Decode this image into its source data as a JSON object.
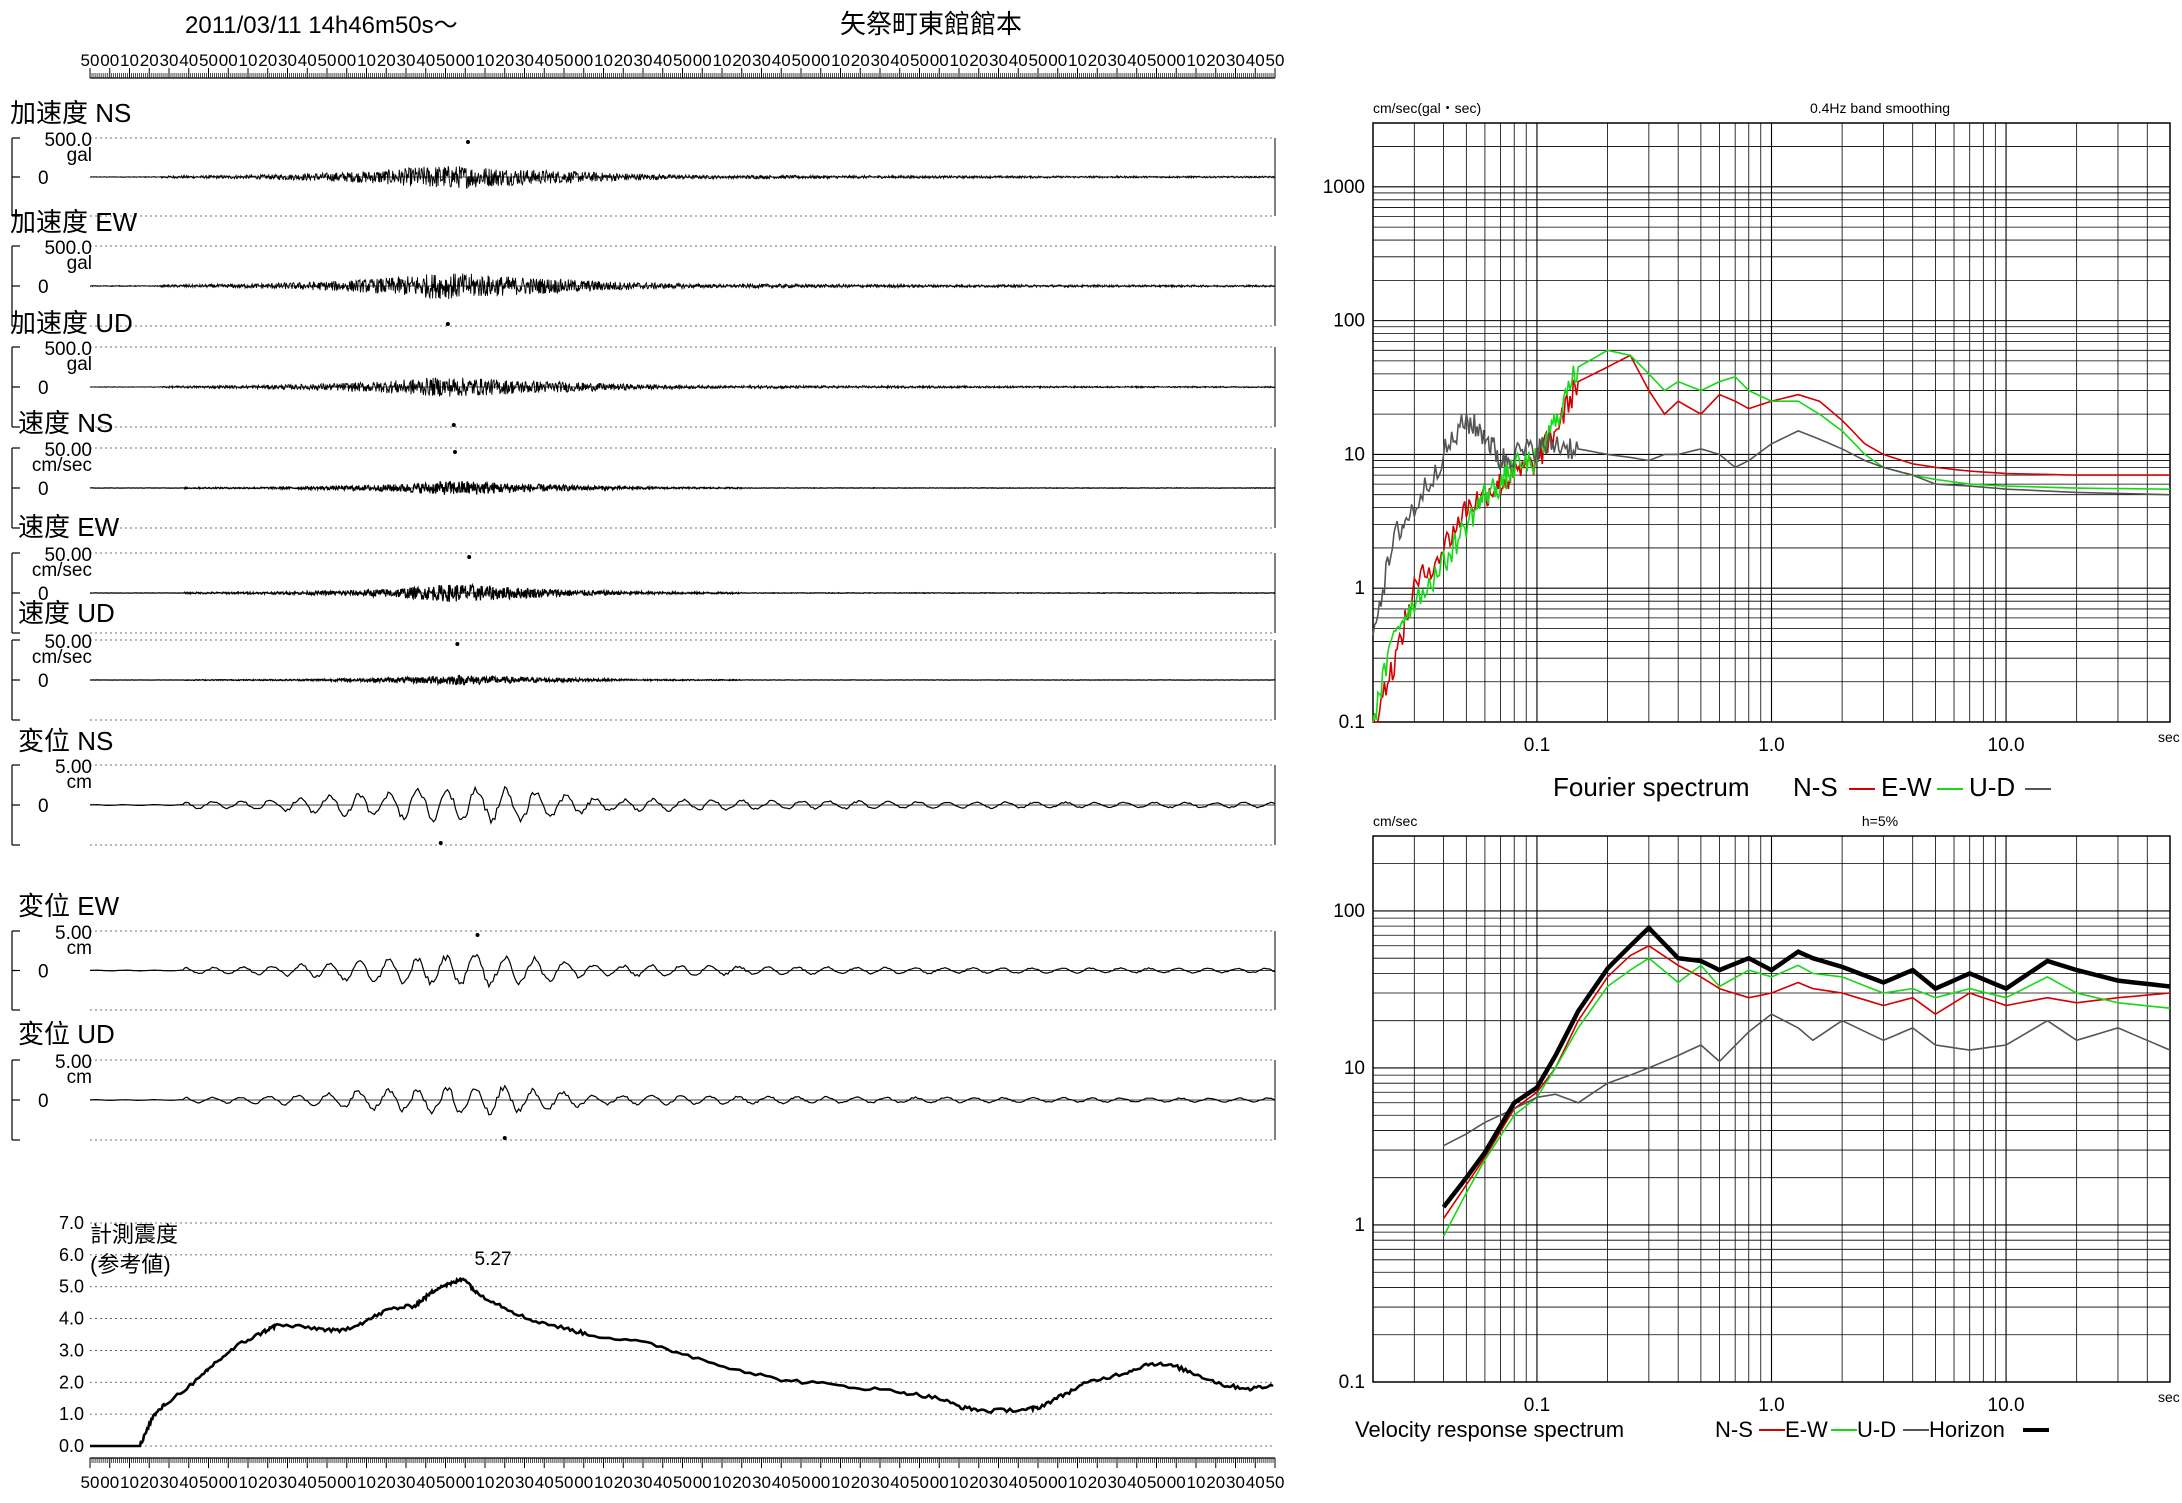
{
  "header": {
    "datetime": "2011/03/11  14h46m50s〜",
    "station": "矢祭町東館館本"
  },
  "time_ticks": [
    "50",
    "00",
    "10",
    "20",
    "30",
    "40",
    "50",
    "00",
    "10",
    "20",
    "30",
    "40",
    "50",
    "00",
    "10",
    "20",
    "30",
    "40",
    "50",
    "00",
    "10",
    "20",
    "30",
    "40",
    "50",
    "00",
    "10",
    "20",
    "30",
    "40",
    "50",
    "00",
    "10",
    "20",
    "30",
    "40",
    "50",
    "00",
    "10",
    "20",
    "30",
    "40",
    "50",
    "00",
    "10",
    "20",
    "30",
    "40",
    "50",
    "00",
    "10",
    "20",
    "30",
    "40",
    "50",
    "00",
    "10",
    "20",
    "30",
    "40",
    "50"
  ],
  "waveform_panels": [
    {
      "title": "加速度 NS",
      "max": "500.0",
      "unit": "gal",
      "zero": "0",
      "amp": 0.55,
      "type": "acc",
      "peak_dir": "up",
      "peak_x": 0.319
    },
    {
      "title": "加速度 EW",
      "max": "500.0",
      "unit": "gal",
      "zero": "0",
      "amp": 0.6,
      "type": "acc",
      "peak_dir": "down",
      "peak_x": 0.302
    },
    {
      "title": "加速度 UD",
      "max": "500.0",
      "unit": "gal",
      "zero": "0",
      "amp": 0.45,
      "type": "acc",
      "peak_dir": "down",
      "peak_x": 0.307
    },
    {
      "title": "速度 NS",
      "max": "50.00",
      "unit": "cm/sec",
      "zero": "0",
      "amp": 0.45,
      "type": "vel",
      "peak_dir": "up",
      "peak_x": 0.308
    },
    {
      "title": "速度 EW",
      "max": "50.00",
      "unit": "cm/sec",
      "zero": "0",
      "amp": 0.55,
      "type": "vel",
      "peak_dir": "up",
      "peak_x": 0.32
    },
    {
      "title": "速度 UD",
      "max": "50.00",
      "unit": "cm/sec",
      "zero": "0",
      "amp": 0.3,
      "type": "vel",
      "peak_dir": "up",
      "peak_x": 0.31
    },
    {
      "title": "変位 NS",
      "max": "5.00",
      "unit": "cm",
      "zero": "0",
      "amp": 1.0,
      "type": "disp",
      "peak_dir": "down",
      "peak_x": 0.296
    },
    {
      "title": "変位 EW",
      "max": "5.00",
      "unit": "cm",
      "zero": "0",
      "amp": 0.9,
      "type": "disp",
      "peak_dir": "up",
      "peak_x": 0.327
    },
    {
      "title": "変位 UD",
      "max": "5.00",
      "unit": "cm",
      "zero": "0",
      "amp": 0.8,
      "type": "disp",
      "peak_dir": "down",
      "peak_x": 0.35
    }
  ],
  "intensity": {
    "title_line1": "計測震度",
    "title_line2": "(参考値)",
    "peak_label": "5.27",
    "y_ticks": [
      "7.0",
      "6.0",
      "5.0",
      "4.0",
      "3.0",
      "2.0",
      "1.0",
      "0.0"
    ]
  },
  "fourier": {
    "unit": "cm/sec(gal・sec)",
    "note": "0.4Hz band smoothing",
    "y_ticks": [
      "1000",
      "100",
      "10",
      "1",
      "0.1"
    ],
    "x_ticks": [
      "0.1",
      "1.0",
      "10.0"
    ],
    "x_unit": "sec",
    "legend_title": "Fourier spectrum",
    "legend": [
      {
        "label": "N-S",
        "color": "#d40000"
      },
      {
        "label": "E-W",
        "color": "#16d916"
      },
      {
        "label": "U-D",
        "color": "#555555"
      }
    ]
  },
  "response": {
    "unit": "cm/sec",
    "note": "h=5%",
    "y_ticks": [
      "100",
      "10",
      "1",
      "0.1"
    ],
    "x_ticks": [
      "0.1",
      "1.0",
      "10.0"
    ],
    "x_unit": "sec",
    "legend_title": "Velocity response spectrum",
    "legend": [
      {
        "label": "N-S",
        "color": "#d40000"
      },
      {
        "label": "E-W",
        "color": "#16d916"
      },
      {
        "label": "U-D",
        "color": "#555555"
      },
      {
        "label": "Horizon",
        "color": "#000000"
      }
    ]
  },
  "chart_data": [
    {
      "type": "line",
      "title": "計測震度 (参考値)",
      "xlabel": "",
      "ylabel": "",
      "ylim": [
        0,
        7
      ],
      "x_ticks": [
        "50",
        "00",
        "10",
        "20",
        "30",
        "40",
        "50",
        "00",
        "10",
        "20",
        "30",
        "40",
        "50",
        "00",
        "10",
        "20",
        "30",
        "40",
        "50",
        "00",
        "10",
        "20",
        "30",
        "40",
        "50",
        "00",
        "10",
        "20",
        "30",
        "40",
        "50",
        "00",
        "10",
        "20",
        "30",
        "40",
        "50",
        "00",
        "10",
        "20",
        "30",
        "40",
        "50",
        "00",
        "10",
        "20",
        "30",
        "40",
        "50",
        "00",
        "10",
        "20",
        "30",
        "40",
        "50",
        "00",
        "10",
        "20",
        "30",
        "40",
        "50"
      ],
      "x": [
        0,
        30,
        40,
        50,
        60,
        90,
        100,
        120,
        140,
        150,
        180,
        200,
        220,
        240,
        260,
        270,
        280,
        290,
        300,
        310,
        330,
        350,
        380,
        400,
        450,
        500,
        550,
        600,
        650,
        680,
        700,
        720,
        750,
        760,
        780,
        800,
        830,
        850,
        870,
        890,
        910,
        930,
        950
      ],
      "series": [
        {
          "name": "",
          "values": [
            0,
            0,
            0,
            0.9,
            1.3,
            2.2,
            2.6,
            3.2,
            3.6,
            3.8,
            3.7,
            3.6,
            3.9,
            4.3,
            4.4,
            4.7,
            5.0,
            5.1,
            5.27,
            4.8,
            4.4,
            4.0,
            3.7,
            3.5,
            3.2,
            2.6,
            2.1,
            1.9,
            1.7,
            1.5,
            1.2,
            1.1,
            1.15,
            1.2,
            1.6,
            2.0,
            2.3,
            2.6,
            2.5,
            2.2,
            1.9,
            1.8,
            1.9
          ]
        }
      ],
      "peak": 5.27
    },
    {
      "type": "line",
      "title": "0.4Hz band smoothing",
      "xlabel": "sec",
      "ylabel": "cm/sec(gal・sec)",
      "xscale": "log",
      "yscale": "log",
      "xlim": [
        0.02,
        50
      ],
      "ylim": [
        0.1,
        3000
      ],
      "series": [
        {
          "name": "N-S",
          "x": [
            0.02,
            0.025,
            0.03,
            0.04,
            0.05,
            0.06,
            0.07,
            0.08,
            0.1,
            0.12,
            0.15,
            0.2,
            0.25,
            0.3,
            0.35,
            0.4,
            0.5,
            0.6,
            0.7,
            0.8,
            1.0,
            1.3,
            1.6,
            2.0,
            2.5,
            3,
            4,
            5,
            7,
            10,
            20,
            50
          ],
          "values": [
            0.1,
            0.3,
            1.0,
            2.0,
            4.0,
            5.0,
            6.0,
            7.0,
            9.0,
            15.0,
            35.0,
            45.0,
            55.0,
            30.0,
            20.0,
            25.0,
            20.0,
            28.0,
            25.0,
            22.0,
            25.0,
            28.0,
            25.0,
            18.0,
            12.0,
            10.0,
            8.5,
            8.0,
            7.5,
            7.2,
            7.0,
            7.0
          ]
        },
        {
          "name": "E-W",
          "x": [
            0.02,
            0.025,
            0.03,
            0.04,
            0.05,
            0.06,
            0.07,
            0.08,
            0.1,
            0.12,
            0.15,
            0.2,
            0.25,
            0.3,
            0.35,
            0.4,
            0.5,
            0.6,
            0.7,
            0.8,
            1.0,
            1.3,
            1.6,
            2.0,
            2.5,
            3,
            4,
            5,
            7,
            10,
            20,
            50
          ],
          "values": [
            0.1,
            0.5,
            0.8,
            1.5,
            3.0,
            5.0,
            6.0,
            8.0,
            9.0,
            18.0,
            45.0,
            60.0,
            55.0,
            40.0,
            30.0,
            35.0,
            30.0,
            35.0,
            38.0,
            30.0,
            25.0,
            25.0,
            20.0,
            15.0,
            10.0,
            8.0,
            7.0,
            6.5,
            6.0,
            5.8,
            5.6,
            5.5
          ]
        },
        {
          "name": "U-D",
          "x": [
            0.02,
            0.025,
            0.03,
            0.04,
            0.05,
            0.06,
            0.07,
            0.08,
            0.1,
            0.12,
            0.15,
            0.2,
            0.25,
            0.3,
            0.35,
            0.4,
            0.5,
            0.6,
            0.7,
            0.8,
            1.0,
            1.3,
            1.6,
            2.0,
            2.5,
            3,
            4,
            5,
            7,
            10,
            20,
            50
          ],
          "values": [
            0.5,
            2.5,
            4.0,
            10.0,
            18.0,
            14.0,
            9.0,
            10.0,
            11.0,
            12.0,
            11.0,
            10.0,
            9.5,
            9.0,
            10.0,
            10.0,
            11.0,
            10.0,
            8.0,
            9.0,
            12.0,
            15.0,
            13.0,
            11.0,
            9.0,
            8.0,
            7.0,
            6.0,
            5.8,
            5.5,
            5.2,
            5.0
          ]
        }
      ]
    },
    {
      "type": "line",
      "title": "h=5%",
      "xlabel": "sec",
      "ylabel": "cm/sec",
      "xscale": "log",
      "yscale": "log",
      "xlim": [
        0.02,
        50
      ],
      "ylim": [
        0.1,
        300
      ],
      "series": [
        {
          "name": "N-S",
          "x": [
            0.04,
            0.05,
            0.06,
            0.08,
            0.1,
            0.12,
            0.15,
            0.2,
            0.25,
            0.3,
            0.4,
            0.5,
            0.6,
            0.8,
            1.0,
            1.3,
            1.5,
            2,
            3,
            4,
            5,
            7,
            10,
            15,
            20,
            30,
            50
          ],
          "values": [
            1.1,
            1.8,
            2.7,
            5.5,
            7.0,
            10.0,
            20.0,
            38.0,
            52.0,
            60.0,
            45.0,
            38.0,
            32.0,
            28.0,
            30.0,
            35.0,
            32.0,
            30.0,
            25.0,
            28.0,
            22.0,
            30.0,
            25.0,
            28.0,
            26.0,
            28.0,
            30.0
          ]
        },
        {
          "name": "E-W",
          "x": [
            0.04,
            0.05,
            0.06,
            0.08,
            0.1,
            0.12,
            0.15,
            0.2,
            0.25,
            0.3,
            0.4,
            0.5,
            0.6,
            0.8,
            1.0,
            1.3,
            1.5,
            2,
            3,
            4,
            5,
            7,
            10,
            15,
            20,
            30,
            50
          ],
          "values": [
            0.85,
            1.6,
            2.6,
            5.0,
            6.5,
            10.0,
            18.0,
            33.0,
            42.0,
            50.0,
            35.0,
            45.0,
            33.0,
            42.0,
            38.0,
            45.0,
            40.0,
            38.0,
            30.0,
            32.0,
            28.0,
            32.0,
            28.0,
            38.0,
            30.0,
            26.0,
            24.0
          ]
        },
        {
          "name": "U-D",
          "x": [
            0.04,
            0.05,
            0.06,
            0.08,
            0.1,
            0.12,
            0.15,
            0.2,
            0.25,
            0.3,
            0.4,
            0.5,
            0.6,
            0.8,
            1.0,
            1.3,
            1.5,
            2,
            3,
            4,
            5,
            7,
            10,
            15,
            20,
            30,
            50
          ],
          "values": [
            3.2,
            3.8,
            4.5,
            5.5,
            6.5,
            6.8,
            6.0,
            8.0,
            9.0,
            10.0,
            12.0,
            14.0,
            11.0,
            17.0,
            22.0,
            18.0,
            15.0,
            20.0,
            15.0,
            18.0,
            14.0,
            13.0,
            14.0,
            20.0,
            15.0,
            18.0,
            13.0
          ]
        },
        {
          "name": "Horizon",
          "x": [
            0.04,
            0.05,
            0.06,
            0.08,
            0.1,
            0.12,
            0.15,
            0.2,
            0.25,
            0.3,
            0.4,
            0.5,
            0.6,
            0.8,
            1.0,
            1.3,
            1.5,
            2,
            3,
            4,
            5,
            7,
            10,
            15,
            20,
            30,
            50
          ],
          "values": [
            1.3,
            2.0,
            2.9,
            6.0,
            7.5,
            12.0,
            23.0,
            43.0,
            60.0,
            78.0,
            50.0,
            48.0,
            42.0,
            50.0,
            42.0,
            55.0,
            50.0,
            44.0,
            35.0,
            42.0,
            32.0,
            40.0,
            32.0,
            48.0,
            42.0,
            36.0,
            33.0
          ]
        }
      ]
    }
  ]
}
